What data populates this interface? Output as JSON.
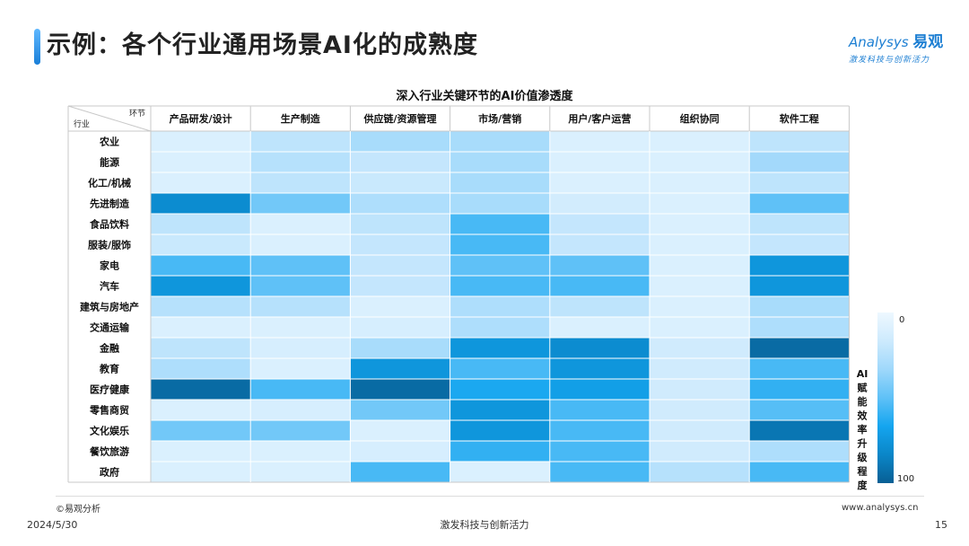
{
  "slide": {
    "title": "示例：各个行业通用场景AI化的成熟度",
    "logo_text": "nalysys",
    "logo_letter": "A",
    "logo_cn": "易观",
    "logo_tagline": "激发科技与创新活力",
    "source": "©易观分析",
    "url": "www.analysys.cn",
    "date": "2024/5/30",
    "slogan": "激发科技与创新活力",
    "page_number": "15"
  },
  "chart_data": {
    "type": "heatmap",
    "title": "深入行业关键环节的AI价值渗透度",
    "corner_col_label": "环节",
    "corner_row_label": "行业",
    "columns": [
      "产品研发/设计",
      "生产制造",
      "供应链/资源管理",
      "市场/营销",
      "用户/客户运营",
      "组织协同",
      "软件工程"
    ],
    "rows": [
      "农业",
      "能源",
      "化工/机械",
      "先进制造",
      "食品饮料",
      "服装/服饰",
      "家电",
      "汽车",
      "建筑与房地产",
      "交通运输",
      "金融",
      "教育",
      "医疗健康",
      "零售商贸",
      "文化娱乐",
      "餐饮旅游",
      "政府"
    ],
    "values": [
      [
        10,
        22,
        30,
        30,
        10,
        10,
        22
      ],
      [
        10,
        25,
        20,
        30,
        10,
        10,
        32
      ],
      [
        10,
        22,
        18,
        30,
        10,
        10,
        22
      ],
      [
        80,
        45,
        28,
        30,
        14,
        10,
        50
      ],
      [
        22,
        10,
        22,
        55,
        20,
        10,
        22
      ],
      [
        18,
        10,
        20,
        55,
        20,
        10,
        20
      ],
      [
        55,
        50,
        20,
        50,
        50,
        10,
        75
      ],
      [
        75,
        50,
        20,
        55,
        55,
        10,
        75
      ],
      [
        25,
        25,
        10,
        28,
        22,
        10,
        30
      ],
      [
        10,
        10,
        12,
        28,
        10,
        10,
        28
      ],
      [
        22,
        12,
        30,
        75,
        80,
        15,
        95
      ],
      [
        28,
        10,
        75,
        55,
        75,
        15,
        55
      ],
      [
        95,
        55,
        95,
        65,
        70,
        15,
        60
      ],
      [
        10,
        12,
        45,
        75,
        55,
        15,
        52
      ],
      [
        45,
        45,
        10,
        75,
        55,
        15,
        90
      ],
      [
        10,
        10,
        12,
        60,
        55,
        15,
        28
      ],
      [
        10,
        10,
        55,
        10,
        55,
        25,
        55
      ]
    ],
    "colorbar": {
      "label": "AI赋能效率升级程度",
      "min": 0,
      "max": 100,
      "min_label": "0",
      "max_label": "100",
      "colors": [
        "#eef8ff",
        "#cdeafd",
        "#9fd8fb",
        "#5fc1f7",
        "#14a5ef",
        "#0a86c8",
        "#085f94"
      ]
    }
  }
}
